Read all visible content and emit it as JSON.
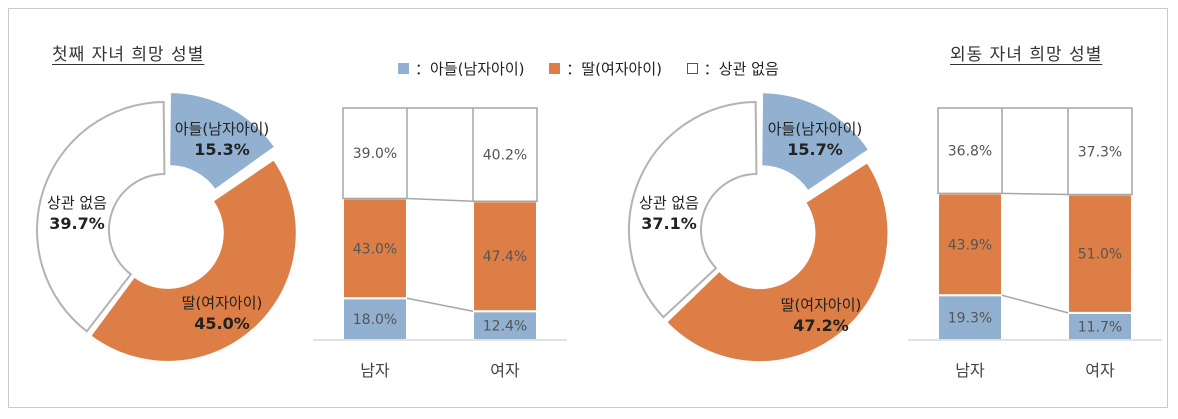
{
  "colors": {
    "son": "#92b0d0",
    "daughter": "#dc7e45",
    "none": "#ffffff",
    "outline": "#b3b3b3"
  },
  "legend": {
    "son": "：아들(남자아이)",
    "daughter": "：딸(여자아이)",
    "none": "：상관 없음"
  },
  "chart_data": [
    {
      "type": "pie",
      "title": "첫째 자녀 희망 성별",
      "slices": [
        {
          "label": "아들(남자아이)",
          "value": 15.3,
          "display": "15.3%"
        },
        {
          "label": "딸(여자아이)",
          "value": 45.0,
          "display": "45.0%"
        },
        {
          "label": "상관 없음",
          "value": 39.7,
          "display": "39.7%"
        }
      ]
    },
    {
      "type": "bar",
      "stacked": true,
      "categories": [
        "남자",
        "여자"
      ],
      "series": [
        {
          "name": "아들(남자아이)",
          "values": [
            18.0,
            12.4
          ],
          "labels": [
            "18.0%",
            "12.4%"
          ]
        },
        {
          "name": "딸(여자아이)",
          "values": [
            43.0,
            47.4
          ],
          "labels": [
            "43.0%",
            "47.4%"
          ]
        },
        {
          "name": "상관 없음",
          "values": [
            39.0,
            40.2
          ],
          "labels": [
            "39.0%",
            "40.2%"
          ]
        }
      ]
    },
    {
      "type": "pie",
      "title": "외동 자녀 희망 성별",
      "slices": [
        {
          "label": "아들(남자아이)",
          "value": 15.7,
          "display": "15.7%"
        },
        {
          "label": "딸(여자아이)",
          "value": 47.2,
          "display": "47.2%"
        },
        {
          "label": "상관 없음",
          "value": 37.1,
          "display": "37.1%"
        }
      ]
    },
    {
      "type": "bar",
      "stacked": true,
      "categories": [
        "남자",
        "여자"
      ],
      "series": [
        {
          "name": "아들(남자아이)",
          "values": [
            19.3,
            11.7
          ],
          "labels": [
            "19.3%",
            "11.7%"
          ]
        },
        {
          "name": "딸(여자아이)",
          "values": [
            43.9,
            51.0
          ],
          "labels": [
            "43.9%",
            "51.0%"
          ]
        },
        {
          "name": "상관 없음",
          "values": [
            36.8,
            37.3
          ],
          "labels": [
            "36.8%",
            "37.3%"
          ]
        }
      ]
    }
  ]
}
